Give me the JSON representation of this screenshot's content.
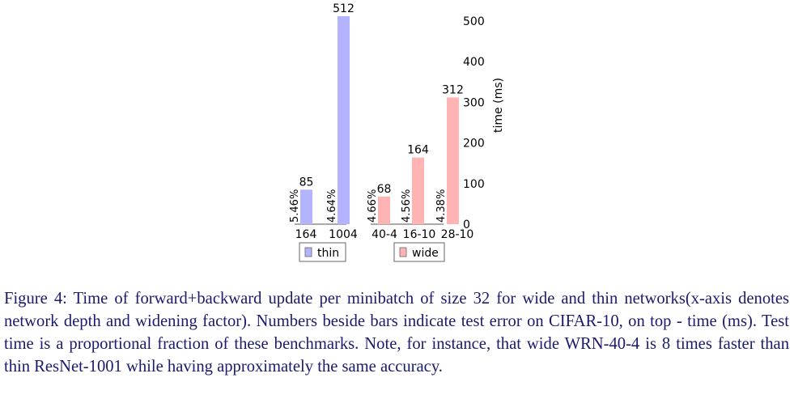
{
  "chart_data": {
    "type": "bar",
    "ylabel": "time (ms)",
    "ylim": [
      0,
      512
    ],
    "yticks": [
      "0",
      "100",
      "200",
      "300",
      "400",
      "500"
    ],
    "groups": [
      {
        "legend": "thin",
        "color": "#b3b3ff",
        "categories": [
          "164",
          "1004"
        ],
        "values": [
          85,
          512
        ],
        "value_labels": [
          "85",
          "512"
        ],
        "error_labels": [
          "5.46%",
          "4.64%"
        ]
      },
      {
        "legend": "wide",
        "color": "#ffb3b3",
        "categories": [
          "40-4",
          "16-10",
          "28-10"
        ],
        "values": [
          68,
          164,
          312
        ],
        "value_labels": [
          "68",
          "164",
          "312"
        ],
        "error_labels": [
          "4.66%",
          "4.56%",
          "4.38%"
        ]
      }
    ]
  },
  "caption": "Figure 4: Time of forward+backward update per minibatch of size 32 for wide and thin networks(x-axis denotes network depth and widening factor). Numbers beside bars indicate test error on CIFAR-10, on top - time (ms). Test time is a proportional fraction of these benchmarks. Note, for instance, that wide WRN-40-4 is 8 times faster than thin ResNet-1001 while having approximately the same accuracy."
}
